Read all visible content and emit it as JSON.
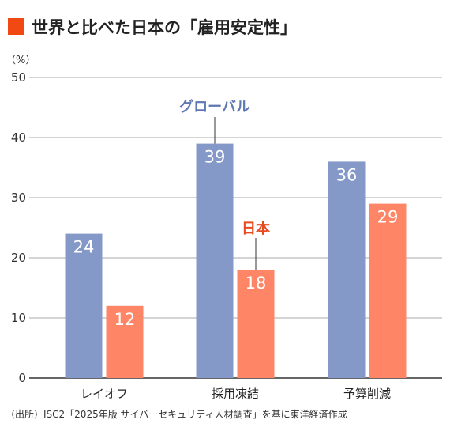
{
  "title": "世界と比べた日本の「雇用安定性」",
  "unit_label": "（%）",
  "source": "（出所）ISC2「2025年版 サイバーセキュリティ人材調査」を基に東洋経済作成",
  "colors": {
    "title_marker": "#f04a12",
    "global": "#8599c8",
    "japan": "#fe8565",
    "global_text": "#5f77b2",
    "japan_text": "#e84a1f",
    "grid": "#aaaaaa",
    "axis": "#333333"
  },
  "chart_data": {
    "type": "bar",
    "title": "世界と比べた日本の「雇用安定性」",
    "categories": [
      "レイオフ",
      "採用凍結",
      "予算削減"
    ],
    "series": [
      {
        "name": "グローバル",
        "values": [
          24,
          39,
          36
        ]
      },
      {
        "name": "日本",
        "values": [
          12,
          18,
          29
        ]
      }
    ],
    "ylim": [
      0,
      50
    ],
    "yticks": [
      0,
      10,
      20,
      30,
      40,
      50
    ],
    "ylabel": "（%）",
    "grid": true,
    "legend": "inline-callouts"
  }
}
